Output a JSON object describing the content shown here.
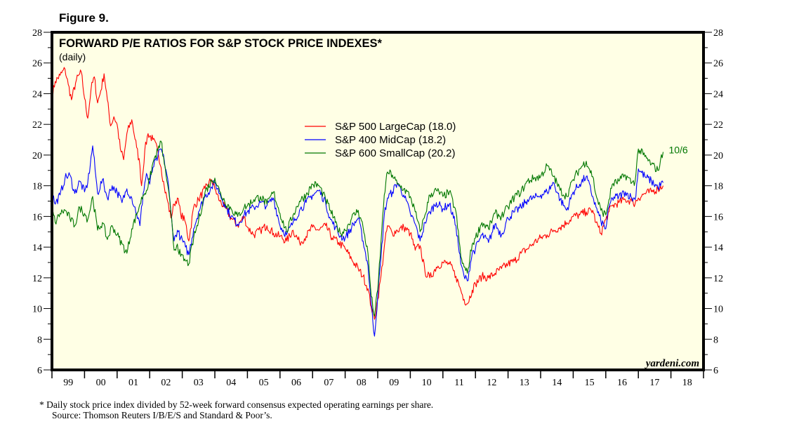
{
  "figure_label": "Figure 9.",
  "chart_data": {
    "type": "line",
    "title": "FORWARD P/E RATIOS FOR S&P STOCK PRICE INDEXES*",
    "subtitle": "(daily)",
    "xlabel": "",
    "ylabel": "",
    "ylim": [
      6,
      28
    ],
    "yticks": [
      6,
      8,
      10,
      12,
      14,
      16,
      18,
      20,
      22,
      24,
      26,
      28
    ],
    "xlim": [
      1999.0,
      2019.0
    ],
    "xtick_labels": [
      "99",
      "00",
      "01",
      "02",
      "03",
      "04",
      "05",
      "06",
      "07",
      "08",
      "09",
      "10",
      "11",
      "12",
      "13",
      "14",
      "15",
      "16",
      "17",
      "18"
    ],
    "grid": false,
    "legend_position": "top-center",
    "end_annotation": "10/6",
    "brand": "yardeni.com",
    "series": [
      {
        "name": "S&P 500 LargeCap (18.0)",
        "color": "#ff0000",
        "x": [
          1999.0,
          1999.1,
          1999.25,
          1999.4,
          1999.5,
          1999.6,
          1999.75,
          1999.9,
          2000.0,
          2000.1,
          2000.2,
          2000.3,
          2000.4,
          2000.5,
          2000.6,
          2000.7,
          2000.8,
          2000.9,
          2001.0,
          2001.1,
          2001.2,
          2001.3,
          2001.45,
          2001.6,
          2001.7,
          2001.75,
          2001.85,
          2001.95,
          2002.1,
          2002.25,
          2002.35,
          2002.45,
          2002.55,
          2002.65,
          2002.75,
          2002.85,
          2002.95,
          2003.1,
          2003.2,
          2003.35,
          2003.5,
          2003.7,
          2003.9,
          2004.0,
          2004.15,
          2004.3,
          2004.5,
          2004.7,
          2004.9,
          2005.0,
          2005.2,
          2005.4,
          2005.6,
          2005.8,
          2006.0,
          2006.2,
          2006.4,
          2006.6,
          2006.8,
          2007.0,
          2007.2,
          2007.4,
          2007.6,
          2007.8,
          2008.0,
          2008.2,
          2008.4,
          2008.55,
          2008.7,
          2008.8,
          2008.9,
          2009.0,
          2009.1,
          2009.2,
          2009.3,
          2009.45,
          2009.6,
          2009.8,
          2010.0,
          2010.15,
          2010.3,
          2010.45,
          2010.6,
          2010.8,
          2011.0,
          2011.2,
          2011.4,
          2011.55,
          2011.65,
          2011.75,
          2011.9,
          2012.0,
          2012.2,
          2012.4,
          2012.6,
          2012.8,
          2013.0,
          2013.2,
          2013.4,
          2013.6,
          2013.8,
          2014.0,
          2014.2,
          2014.4,
          2014.6,
          2014.8,
          2015.0,
          2015.2,
          2015.4,
          2015.6,
          2015.7,
          2015.85,
          2016.0,
          2016.1,
          2016.2,
          2016.4,
          2016.6,
          2016.8,
          2016.85,
          2017.0,
          2017.2,
          2017.4,
          2017.6,
          2017.76
        ],
        "values": [
          23.8,
          24.8,
          25.2,
          25.6,
          24.6,
          23.6,
          24.9,
          25.4,
          23.7,
          22.4,
          24.3,
          25.1,
          23.4,
          24.2,
          25.3,
          23.6,
          21.9,
          22.5,
          22.0,
          20.4,
          19.7,
          21.4,
          22.3,
          20.5,
          19.3,
          18.0,
          20.3,
          21.4,
          21.0,
          20.3,
          19.2,
          17.9,
          17.0,
          15.9,
          16.8,
          17.2,
          16.2,
          15.6,
          14.4,
          16.6,
          17.1,
          17.8,
          18.4,
          17.8,
          17.0,
          16.6,
          15.9,
          15.4,
          16.0,
          15.3,
          14.8,
          15.1,
          15.4,
          14.9,
          14.7,
          14.4,
          15.1,
          14.3,
          14.7,
          15.3,
          15.1,
          15.4,
          14.6,
          14.3,
          13.9,
          13.2,
          12.6,
          12.1,
          11.3,
          10.1,
          9.3,
          10.6,
          12.1,
          14.0,
          15.4,
          14.9,
          15.1,
          15.3,
          14.9,
          13.8,
          14.1,
          12.4,
          12.0,
          12.7,
          13.0,
          12.9,
          12.1,
          11.2,
          10.6,
          10.3,
          11.2,
          11.6,
          12.1,
          12.0,
          12.3,
          12.6,
          12.9,
          13.1,
          13.6,
          13.9,
          14.3,
          14.6,
          14.8,
          15.1,
          15.3,
          15.6,
          16.0,
          16.1,
          16.3,
          16.4,
          15.6,
          14.9,
          15.8,
          16.3,
          16.7,
          16.9,
          17.1,
          17.0,
          16.8,
          17.2,
          17.5,
          17.6,
          17.8,
          18.0
        ]
      },
      {
        "name": "S&P 400 MidCap (18.2)",
        "color": "#0000ff",
        "x": [
          1999.0,
          1999.1,
          1999.25,
          1999.4,
          1999.55,
          1999.7,
          1999.85,
          2000.0,
          2000.1,
          2000.25,
          2000.4,
          2000.55,
          2000.7,
          2000.85,
          2001.0,
          2001.15,
          2001.3,
          2001.45,
          2001.6,
          2001.7,
          2001.8,
          2001.9,
          2002.0,
          2002.1,
          2002.25,
          2002.35,
          2002.45,
          2002.55,
          2002.65,
          2002.75,
          2002.85,
          2002.95,
          2003.1,
          2003.2,
          2003.35,
          2003.5,
          2003.7,
          2003.9,
          2004.0,
          2004.15,
          2004.3,
          2004.5,
          2004.7,
          2004.9,
          2005.0,
          2005.2,
          2005.4,
          2005.6,
          2005.8,
          2006.0,
          2006.2,
          2006.4,
          2006.6,
          2006.8,
          2007.0,
          2007.2,
          2007.4,
          2007.55,
          2007.7,
          2007.85,
          2008.0,
          2008.2,
          2008.4,
          2008.55,
          2008.7,
          2008.8,
          2008.9,
          2009.0,
          2009.1,
          2009.2,
          2009.3,
          2009.45,
          2009.6,
          2009.8,
          2010.0,
          2010.15,
          2010.3,
          2010.45,
          2010.6,
          2010.8,
          2011.0,
          2011.2,
          2011.4,
          2011.55,
          2011.65,
          2011.75,
          2011.9,
          2012.0,
          2012.2,
          2012.4,
          2012.6,
          2012.8,
          2013.0,
          2013.2,
          2013.4,
          2013.6,
          2013.8,
          2014.0,
          2014.2,
          2014.4,
          2014.6,
          2014.8,
          2015.0,
          2015.2,
          2015.4,
          2015.6,
          2015.7,
          2015.85,
          2016.0,
          2016.1,
          2016.2,
          2016.4,
          2016.6,
          2016.8,
          2016.9,
          2017.0,
          2017.2,
          2017.4,
          2017.6,
          2017.76
        ],
        "values": [
          17.6,
          16.8,
          17.4,
          18.5,
          18.7,
          17.5,
          18.3,
          17.6,
          18.2,
          20.6,
          17.5,
          18.4,
          17.2,
          18.0,
          17.6,
          16.9,
          17.8,
          17.2,
          16.2,
          15.4,
          17.5,
          18.8,
          18.1,
          19.2,
          19.9,
          20.4,
          19.6,
          18.5,
          16.3,
          14.4,
          15.1,
          14.6,
          14.0,
          13.5,
          15.2,
          16.3,
          17.3,
          17.9,
          18.2,
          17.5,
          16.8,
          16.0,
          15.5,
          16.1,
          16.3,
          16.6,
          16.9,
          16.7,
          17.2,
          15.4,
          14.8,
          15.6,
          16.4,
          16.9,
          17.4,
          17.7,
          16.9,
          15.8,
          15.3,
          14.7,
          14.6,
          15.3,
          15.9,
          14.4,
          12.8,
          10.3,
          8.2,
          10.8,
          13.3,
          16.1,
          17.2,
          17.6,
          18.2,
          17.4,
          16.2,
          15.5,
          14.4,
          15.6,
          16.3,
          16.9,
          16.5,
          16.8,
          15.4,
          12.9,
          12.1,
          11.8,
          13.6,
          13.9,
          14.8,
          14.3,
          15.5,
          14.8,
          15.9,
          16.3,
          16.6,
          17.1,
          17.2,
          17.4,
          17.6,
          18.2,
          17.1,
          16.4,
          17.6,
          18.1,
          18.6,
          17.3,
          16.6,
          15.7,
          15.2,
          16.6,
          17.2,
          17.3,
          17.6,
          17.2,
          17.1,
          19.1,
          18.6,
          18.3,
          17.9,
          18.2
        ]
      },
      {
        "name": "S&P 600 SmallCap (20.2)",
        "color": "#007700",
        "x": [
          1999.0,
          1999.1,
          1999.25,
          1999.4,
          1999.55,
          1999.7,
          1999.85,
          2000.0,
          2000.1,
          2000.25,
          2000.4,
          2000.55,
          2000.7,
          2000.85,
          2001.0,
          2001.15,
          2001.3,
          2001.45,
          2001.6,
          2001.7,
          2001.8,
          2001.9,
          2002.0,
          2002.1,
          2002.25,
          2002.35,
          2002.45,
          2002.55,
          2002.65,
          2002.75,
          2002.85,
          2002.95,
          2003.1,
          2003.2,
          2003.35,
          2003.5,
          2003.7,
          2003.9,
          2004.0,
          2004.15,
          2004.3,
          2004.5,
          2004.7,
          2004.9,
          2005.0,
          2005.2,
          2005.4,
          2005.6,
          2005.8,
          2006.0,
          2006.2,
          2006.4,
          2006.6,
          2006.8,
          2007.0,
          2007.2,
          2007.4,
          2007.55,
          2007.7,
          2007.85,
          2008.0,
          2008.2,
          2008.4,
          2008.55,
          2008.7,
          2008.8,
          2008.9,
          2009.0,
          2009.1,
          2009.2,
          2009.3,
          2009.45,
          2009.6,
          2009.8,
          2010.0,
          2010.15,
          2010.3,
          2010.45,
          2010.6,
          2010.8,
          2011.0,
          2011.2,
          2011.4,
          2011.55,
          2011.65,
          2011.75,
          2011.9,
          2012.0,
          2012.2,
          2012.4,
          2012.6,
          2012.8,
          2013.0,
          2013.2,
          2013.4,
          2013.6,
          2013.8,
          2014.0,
          2014.2,
          2014.4,
          2014.6,
          2014.8,
          2015.0,
          2015.2,
          2015.4,
          2015.6,
          2015.7,
          2015.85,
          2016.0,
          2016.1,
          2016.2,
          2016.4,
          2016.6,
          2016.8,
          2016.9,
          2017.0,
          2017.2,
          2017.4,
          2017.6,
          2017.76
        ],
        "values": [
          16.5,
          15.6,
          16.2,
          16.4,
          15.9,
          15.4,
          16.6,
          16.2,
          15.8,
          17.3,
          15.1,
          15.6,
          14.5,
          15.4,
          14.8,
          14.2,
          13.6,
          15.2,
          16.1,
          16.8,
          17.4,
          17.7,
          18.4,
          19.5,
          20.3,
          20.9,
          19.4,
          18.1,
          16.2,
          13.8,
          14.2,
          13.4,
          13.1,
          12.9,
          14.6,
          15.7,
          17.6,
          18.3,
          18.5,
          17.6,
          17.0,
          16.5,
          16.0,
          16.6,
          16.7,
          17.1,
          17.3,
          16.8,
          17.6,
          16.2,
          15.0,
          16.1,
          17.0,
          17.4,
          18.1,
          18.0,
          17.1,
          16.4,
          15.6,
          14.9,
          15.1,
          15.9,
          16.4,
          15.3,
          13.6,
          10.8,
          9.5,
          11.2,
          14.3,
          17.4,
          18.9,
          18.7,
          18.1,
          17.8,
          17.3,
          16.3,
          15.0,
          16.1,
          17.4,
          17.7,
          17.3,
          17.6,
          16.3,
          13.4,
          12.7,
          12.3,
          14.2,
          14.6,
          15.6,
          15.2,
          16.2,
          16.0,
          16.6,
          17.3,
          17.6,
          18.3,
          18.5,
          18.6,
          19.3,
          18.6,
          17.7,
          17.3,
          18.4,
          19.1,
          19.6,
          18.6,
          17.4,
          16.4,
          16.1,
          17.1,
          18.1,
          18.3,
          18.7,
          18.2,
          18.3,
          20.4,
          19.9,
          19.4,
          19.0,
          20.2
        ]
      }
    ]
  },
  "footnote_line1": "*  Daily stock price index divided by 52-week forward consensus expected operating earnings per share.",
  "footnote_line2": "Source: Thomson Reuters I/B/E/S and Standard & Poor’s."
}
